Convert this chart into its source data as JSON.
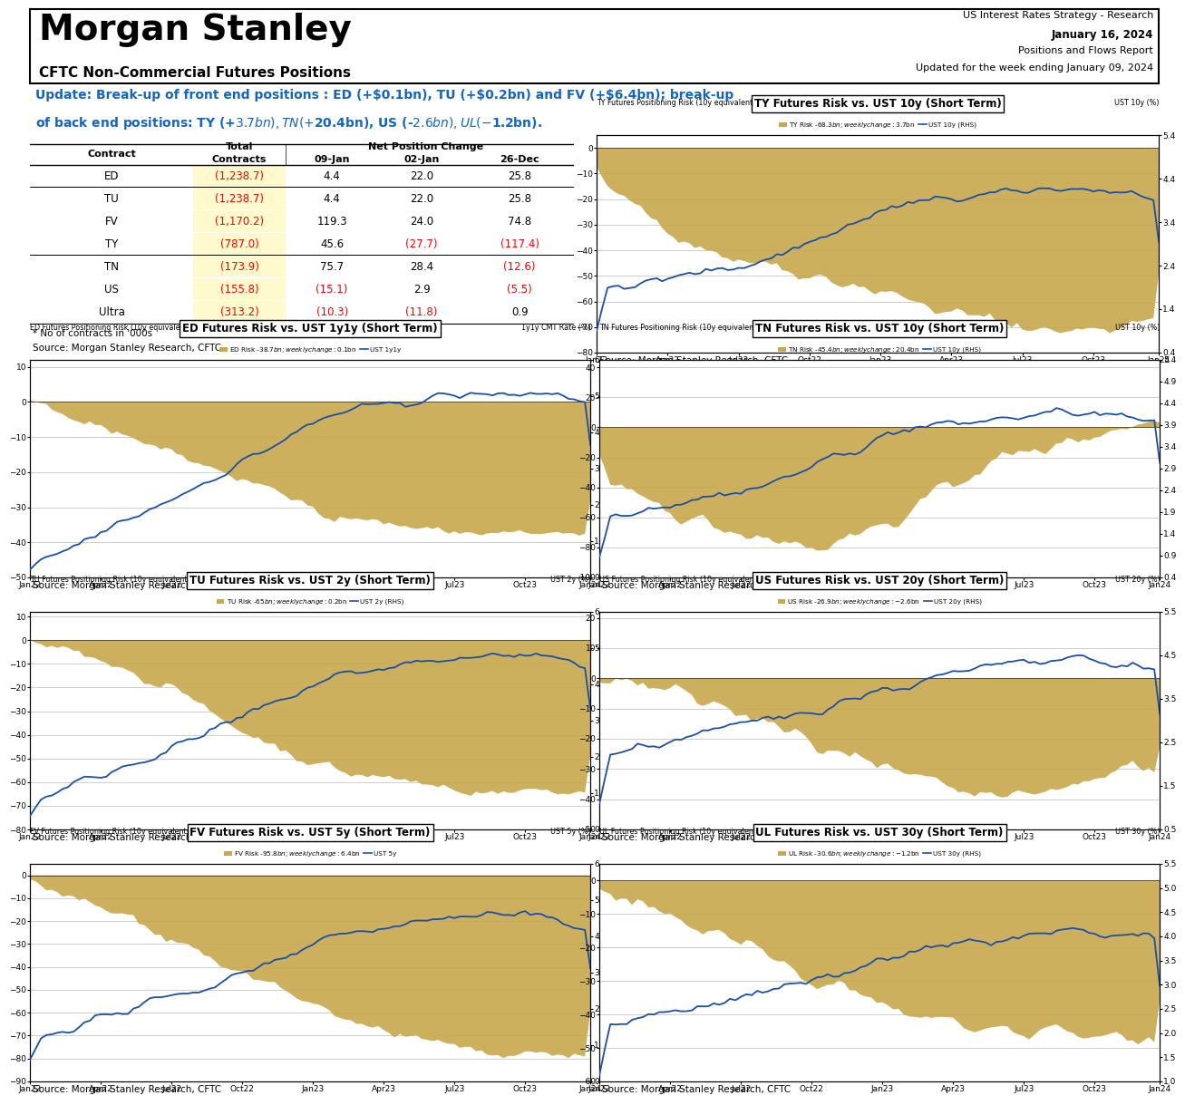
{
  "header": {
    "title": "Morgan Stanley",
    "subtitle_right1": "US Interest Rates Strategy - Research",
    "subtitle_right2": "January 16, 2024",
    "subtitle_right3": "Positions and Flows Report",
    "subtitle_right4": "Updated for the week ending January 09, 2024",
    "subtitle_left": "CFTC Non-Commercial Futures Positions"
  },
  "update_text_line1": "Update: Break-up of front end positions : ED (+$0.1bn), TU (+$0.2bn) and FV (+$6.4bn); break-up",
  "update_text_line2": "of back end positions: TY (+$3.7bn), TN (+$20.4bn), US (-$2.6bn), UL (-$1.2bn).",
  "table_data": [
    [
      "ED",
      "(1,238.7)",
      "4.4",
      "22.0",
      "25.8"
    ],
    [
      "TU",
      "(1,238.7)",
      "4.4",
      "22.0",
      "25.8"
    ],
    [
      "FV",
      "(1,170.2)",
      "119.3",
      "24.0",
      "74.8"
    ],
    [
      "TY",
      "(787.0)",
      "45.6",
      "(27.7)",
      "(117.4)"
    ],
    [
      "TN",
      "(173.9)",
      "75.7",
      "28.4",
      "(12.6)"
    ],
    [
      "US",
      "(155.8)",
      "(15.1)",
      "2.9",
      "(5.5)"
    ],
    [
      "Ultra",
      "(313.2)",
      "(10.3)",
      "(11.8)",
      "0.9"
    ]
  ],
  "cell_colors": [
    [
      "black",
      "red",
      "black",
      "black",
      "black"
    ],
    [
      "black",
      "red",
      "black",
      "black",
      "black"
    ],
    [
      "black",
      "red",
      "black",
      "black",
      "black"
    ],
    [
      "black",
      "red",
      "black",
      "red",
      "red"
    ],
    [
      "black",
      "red",
      "black",
      "black",
      "red"
    ],
    [
      "black",
      "red",
      "red",
      "black",
      "red"
    ],
    [
      "black",
      "red",
      "red",
      "red",
      "black"
    ]
  ],
  "separator_after_rows": [
    1,
    4
  ],
  "charts": {
    "TY": {
      "title": "TY Futures Risk vs. UST 10y (Short Term)",
      "left_label": "TY Futures Positioning Risk (10y equivalents $bn)",
      "right_label": "UST 10y (%)",
      "legend_bar": "TY Risk -$68.3bn; weekly change: $3.7bn",
      "legend_line": "UST 10y (RHS)",
      "ylim_left": [
        -80,
        5
      ],
      "ylim_right": [
        0.4,
        5.4
      ],
      "yticks_left": [
        0,
        -10,
        -20,
        -30,
        -40,
        -50,
        -60,
        -70,
        -80
      ],
      "yticks_right": [
        0.4,
        1.4,
        2.4,
        3.4,
        4.4,
        5.4
      ]
    },
    "ED": {
      "title": "ED Futures Risk vs. UST 1y1y (Short Term)",
      "left_label": "ED Futures Positioning Risk (10y equivalents $bn)",
      "right_label": "1y1y CMT Rate (%)",
      "legend_bar": "ED Risk -$38.7bn; weekly change: $0.1bn",
      "legend_line": "UST 1y1y",
      "ylim_left": [
        -50,
        12
      ],
      "ylim_right": [
        0.0,
        6.0
      ],
      "yticks_left": [
        10,
        0,
        -10,
        -20,
        -30,
        -40,
        -50
      ],
      "yticks_right": [
        0.0,
        1.0,
        2.0,
        3.0,
        4.0,
        5.0,
        6.0
      ]
    },
    "TN": {
      "title": "TN Futures Risk vs. UST 10y (Short Term)",
      "left_label": "TN Futures Positioning Risk (10y equivalents $bn)",
      "right_label": "UST 10y (%)",
      "legend_bar": "TN Risk -$45.4bn; weekly change: $20.4bn",
      "legend_line": "UST 10y (RHS)",
      "ylim_left": [
        -100,
        45
      ],
      "ylim_right": [
        0.4,
        5.4
      ],
      "yticks_left": [
        40,
        20,
        0,
        -20,
        -40,
        -60,
        -80,
        -100
      ],
      "yticks_right": [
        0.4,
        0.9,
        1.4,
        1.9,
        2.4,
        2.9,
        3.4,
        3.9,
        4.4,
        4.9,
        5.4
      ]
    },
    "TU": {
      "title": "TU Futures Risk vs. UST 2y (Short Term)",
      "left_label": "TU Futures Positioning Risk (10y equivalents $bn)",
      "right_label": "UST 2y (%)",
      "legend_bar": "TU Risk -$65 bn; weekly change: $0.2bn",
      "legend_line": "UST 2y (RHS)",
      "ylim_left": [
        -80,
        12
      ],
      "ylim_right": [
        0.0,
        6.0
      ],
      "yticks_left": [
        10,
        0,
        -10,
        -20,
        -30,
        -40,
        -50,
        -60,
        -70,
        -80
      ],
      "yticks_right": [
        0.0,
        1.0,
        2.0,
        3.0,
        4.0,
        5.0,
        6.0
      ]
    },
    "US": {
      "title": "US Futures Risk vs. UST 20y (Short Term)",
      "left_label": "US Futures Positioning Risk (10y equivalents $bn)",
      "right_label": "UST 20y (%)",
      "legend_bar": "US Risk -$26.9bn; weekly change: -$2.6bn",
      "legend_line": "UST 20y (RHS)",
      "ylim_left": [
        -50,
        22
      ],
      "ylim_right": [
        0.5,
        5.5
      ],
      "yticks_left": [
        20,
        10,
        0,
        -10,
        -20,
        -30,
        -40,
        -50
      ],
      "yticks_right": [
        0.5,
        1.5,
        2.5,
        3.5,
        4.5,
        5.5
      ]
    },
    "FV": {
      "title": "FV Futures Risk vs. UST 5y (Short Term)",
      "left_label": "FV Futures Positioning Risk (10y equivalents $bn)",
      "right_label": "UST 5y (%)",
      "legend_bar": "FV Risk -$95.8bn; weekly change: $6.4bn",
      "legend_line": "UST 5y",
      "ylim_left": [
        -90,
        5
      ],
      "ylim_right": [
        0.0,
        6.0
      ],
      "yticks_left": [
        0,
        -10,
        -20,
        -30,
        -40,
        -50,
        -60,
        -70,
        -80,
        -90
      ],
      "yticks_right": [
        0.0,
        1.0,
        2.0,
        3.0,
        4.0,
        5.0,
        6.0
      ]
    },
    "UL": {
      "title": "UL Futures Risk vs. UST 30y (Short Term)",
      "left_label": "UL Futures Positioning Risk (10y equivalents $bn)",
      "right_label": "UST 30y (%)",
      "legend_bar": "UL Risk -$30.6 bn; weekly change: -$1.2bn",
      "legend_line": "UST 30y (RHS)",
      "ylim_left": [
        -60,
        5
      ],
      "ylim_right": [
        1.0,
        5.5
      ],
      "yticks_left": [
        0,
        -10,
        -20,
        -30,
        -40,
        -50,
        -60
      ],
      "yticks_right": [
        1.0,
        1.5,
        2.0,
        2.5,
        3.0,
        3.5,
        4.0,
        4.5,
        5.0,
        5.5
      ]
    }
  },
  "colors": {
    "bar_fill": "#C8A84B",
    "line": "#1B4FA8",
    "red": "#FF0000",
    "blue_update": "#1565C0",
    "highlight_yellow": "#FFFACD"
  },
  "xticklabels": [
    "Jan22",
    "Apr22",
    "Jul22",
    "Oct22",
    "Jan23",
    "Apr23",
    "Jul23",
    "Oct23",
    "Jan24"
  ],
  "source_text": "Source: Morgan Stanley Research, CFTC",
  "footnote": "* No of contracts in '000s"
}
